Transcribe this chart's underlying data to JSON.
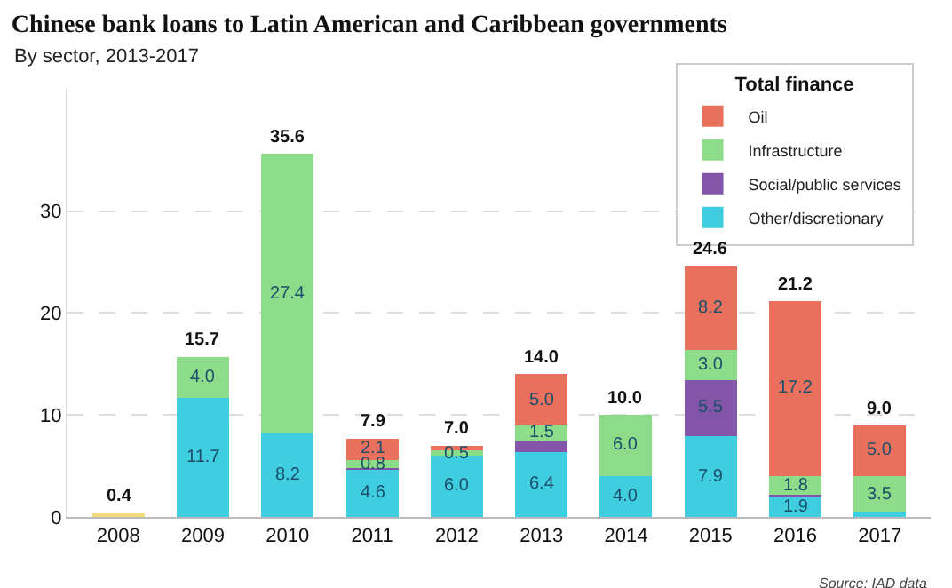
{
  "chart_data": {
    "type": "bar",
    "title": "Chinese bank loans to Latin American and Caribbean governments",
    "subtitle": "By sector, 2013-2017",
    "categories": [
      "2008",
      "2009",
      "2010",
      "2011",
      "2012",
      "2013",
      "2014",
      "2015",
      "2016",
      "2017"
    ],
    "stacked": true,
    "series": [
      {
        "color": "#f2dc7e",
        "values": [
          0.4,
          null,
          null,
          null,
          null,
          null,
          null,
          null,
          null,
          null
        ],
        "value_labels": [
          null,
          null,
          null,
          null,
          null,
          null,
          null,
          null,
          null,
          null
        ]
      },
      {
        "name": "Other/discretionary",
        "color": "#3fcde0",
        "values": [
          null,
          11.7,
          8.2,
          4.6,
          6.0,
          6.4,
          4.0,
          7.9,
          1.9,
          0.5
        ],
        "value_labels": [
          null,
          "11.7",
          "8.2",
          "4.6",
          "6.0",
          "6.4",
          "4.0",
          "7.9",
          "1.9",
          null
        ]
      },
      {
        "name": "Social/public services",
        "color": "#8255a8",
        "values": [
          null,
          null,
          null,
          0.2,
          null,
          1.1,
          null,
          5.5,
          0.3,
          null
        ],
        "value_labels": [
          null,
          null,
          null,
          null,
          null,
          null,
          null,
          "5.5",
          null,
          null
        ]
      },
      {
        "name": "Infrastructure",
        "color": "#8ddc8a",
        "values": [
          null,
          4.0,
          27.4,
          0.8,
          0.5,
          1.5,
          6.0,
          3.0,
          1.8,
          3.5
        ],
        "value_labels": [
          null,
          "4.0",
          "27.4",
          "0.8",
          "0.5",
          "1.5",
          "6.0",
          "3.0",
          "1.8",
          "3.5"
        ]
      },
      {
        "name": "Oil",
        "color": "#e8705c",
        "values": [
          null,
          null,
          null,
          2.1,
          0.5,
          5.0,
          null,
          8.2,
          17.2,
          5.0
        ],
        "value_labels": [
          null,
          null,
          null,
          "2.1",
          null,
          "5.0",
          null,
          "8.2",
          "17.2",
          "5.0"
        ]
      }
    ],
    "totals": [
      "0.4",
      "15.7",
      "35.6",
      "7.9",
      "7.0",
      "14.0",
      "10.0",
      "24.6",
      "21.2",
      "9.0"
    ],
    "ylim": [
      0,
      42
    ],
    "yticks": [
      0,
      10,
      20,
      30
    ],
    "grid": "y",
    "legend": "top right",
    "legend_title": "Total finance",
    "annotations": [
      "Source: IAD data"
    ]
  }
}
